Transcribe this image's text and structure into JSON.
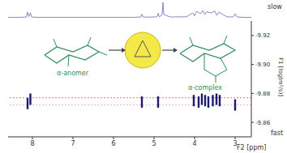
{
  "chart_data": [
    {
      "type": "scatter",
      "x_label": "F2 [ppm]",
      "y_label": "F1 [log(m²/s)]",
      "x": [
        8.12,
        8.05,
        5.3,
        4.9,
        4.02,
        3.9,
        3.82,
        3.74,
        3.66,
        3.55,
        3.46,
        3.38,
        3.0
      ],
      "values": [
        -9.873,
        -9.876,
        -9.874,
        -9.874,
        -9.875,
        -9.874,
        -9.876,
        -9.875,
        -9.874,
        -9.875,
        -9.876,
        -9.875,
        -9.872
      ],
      "xlim": [
        8.6,
        2.6
      ],
      "ylim": [
        -9.85,
        -9.93
      ],
      "xticks": [
        8,
        7,
        6,
        5,
        4,
        3
      ],
      "yticks": [
        -9.92,
        {
          "value": -9.9,
          "label": "-9.90"
        },
        -9.88,
        -9.86
      ],
      "color": "#1a1a6e",
      "marker": "bar",
      "reference_lines": [
        {
          "y": -9.877,
          "color": "#e05050"
        },
        {
          "y": -9.872,
          "color": "#f0a0c0"
        }
      ],
      "annotations": [
        {
          "text": "α-anomer"
        },
        {
          "text": "α-complex"
        },
        {
          "text": "slow"
        },
        {
          "text": "fast"
        }
      ]
    },
    {
      "type": "line",
      "x": [
        8.6,
        8.3,
        8.15,
        8.12,
        8.09,
        8.05,
        8.02,
        7.9,
        7.5,
        7.0,
        6.5,
        6.0,
        5.5,
        5.33,
        5.3,
        5.27,
        5.1,
        4.93,
        4.9,
        4.87,
        4.8,
        4.78,
        4.76,
        4.6,
        4.2,
        4.05,
        4.0,
        3.95,
        3.85,
        3.8,
        3.75,
        3.7,
        3.6,
        3.5,
        3.45,
        3.4,
        3.3,
        3.2,
        3.05,
        3.0,
        2.95,
        2.8,
        2.6
      ],
      "values": [
        3,
        3,
        5,
        35,
        8,
        30,
        5,
        3,
        3,
        3,
        3,
        3,
        3,
        5,
        22,
        5,
        4,
        6,
        28,
        6,
        20,
        95,
        20,
        5,
        6,
        30,
        12,
        40,
        25,
        45,
        20,
        38,
        30,
        42,
        15,
        35,
        20,
        6,
        5,
        25,
        5,
        3,
        3
      ],
      "xlim": [
        8.6,
        2.6
      ],
      "ylim": [
        0,
        100
      ],
      "color": "#6a6ab0",
      "tick_labels": false
    }
  ]
}
